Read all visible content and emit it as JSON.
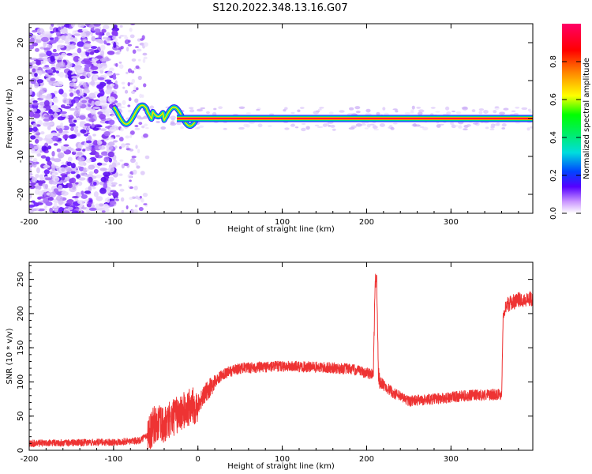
{
  "title": "S120.2022.348.13.16.G07",
  "chart_data": [
    {
      "type": "heatmap",
      "xlabel": "Height of straight line (km)",
      "ylabel": "Frequency (Hz)",
      "xlim": [
        -200,
        397
      ],
      "ylim": [
        -25,
        25
      ],
      "x_ticks": [
        -200,
        -100,
        0,
        100,
        200,
        300
      ],
      "y_ticks": [
        -20,
        -10,
        0,
        10,
        20
      ],
      "colorbar": {
        "label": "Normalized spectral amplitude",
        "range": [
          0,
          1
        ],
        "ticks": [
          "0.0",
          "0.2",
          "0.4",
          "0.6",
          "0.8"
        ],
        "colormap": [
          "#ffffff",
          "#5500ff",
          "#0044ff",
          "#00dddd",
          "#00ff00",
          "#ffff00",
          "#ff8800",
          "#ff0000",
          "#ff0066"
        ]
      },
      "regions": [
        {
          "x_range": [
            -200,
            -97
          ],
          "description": "dense noise",
          "amplitude": 0.15
        },
        {
          "x_range": [
            -97,
            -60
          ],
          "description": "sparse noise",
          "amplitude": 0.05
        },
        {
          "x_range": [
            -100,
            0
          ],
          "description": "wiggling tone near 0 Hz",
          "freq_range": [
            -3,
            5
          ]
        },
        {
          "x_range": [
            0,
            397
          ],
          "description": "stable tone at 0 Hz",
          "freq": 0,
          "amplitude": 1.0
        }
      ]
    },
    {
      "type": "line",
      "xlabel": "Height of straight line (km)",
      "ylabel": "SNR (10 * v/v)",
      "xlim": [
        -200,
        397
      ],
      "ylim": [
        0,
        275
      ],
      "x_ticks": [
        -200,
        -100,
        0,
        100,
        200,
        300
      ],
      "y_ticks": [
        0,
        50,
        100,
        150,
        200,
        250
      ],
      "series": [
        {
          "color": "#ee3333",
          "x": [
            -200,
            -150,
            -100,
            -70,
            -60,
            -50,
            -40,
            -30,
            -20,
            -10,
            0,
            10,
            20,
            30,
            50,
            80,
            100,
            150,
            180,
            200,
            208,
            210,
            212,
            214,
            216,
            230,
            250,
            280,
            320,
            360,
            362,
            365,
            380,
            397
          ],
          "y": [
            10,
            11,
            12,
            14,
            22,
            40,
            35,
            48,
            55,
            62,
            68,
            85,
            100,
            112,
            120,
            122,
            123,
            121,
            119,
            113,
            112,
            245,
            250,
            110,
            100,
            85,
            72,
            75,
            80,
            82,
            200,
            212,
            220,
            222
          ]
        }
      ]
    }
  ]
}
